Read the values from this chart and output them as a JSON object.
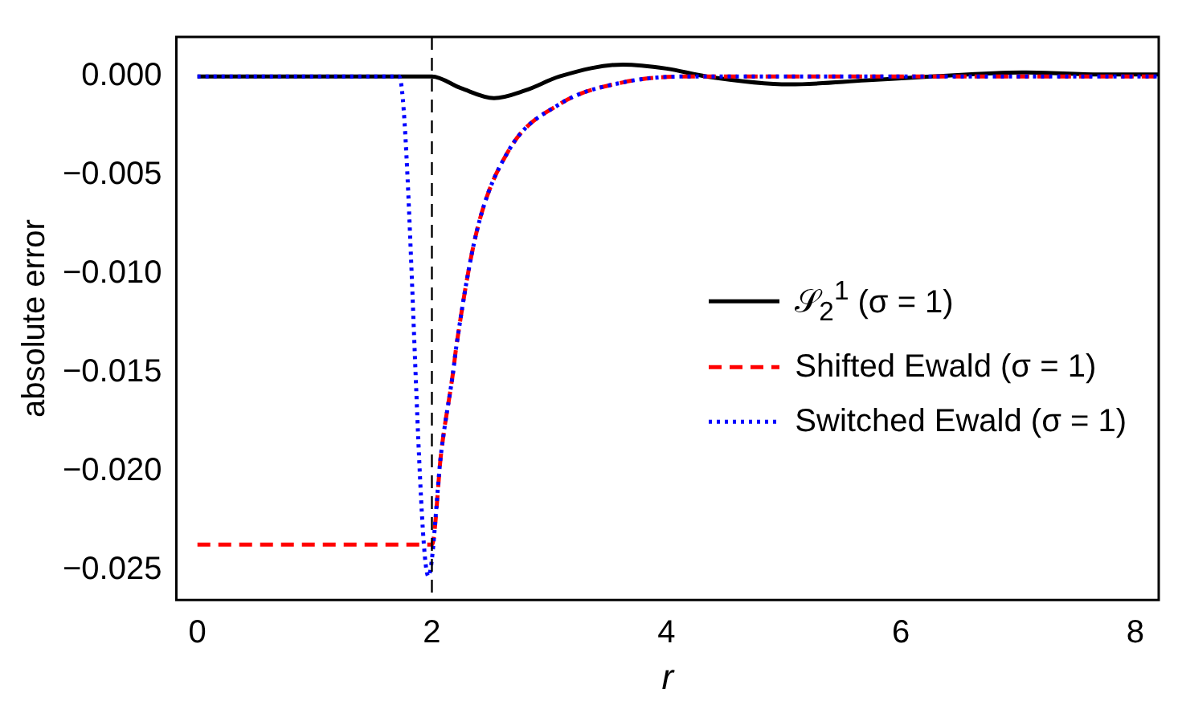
{
  "chart_data": {
    "type": "line",
    "xlabel": "r",
    "ylabel": "absolute error",
    "xlim": [
      -0.18,
      8.2
    ],
    "xticks": [
      0,
      2,
      4,
      6,
      8
    ],
    "ylim": [
      -0.0265,
      0.002
    ],
    "yticks": [
      {
        "value": 0,
        "label": "0.000"
      },
      {
        "value": -0.005,
        "label": "−0.005"
      },
      {
        "value": -0.01,
        "label": "−0.010"
      },
      {
        "value": -0.015,
        "label": "−0.015"
      },
      {
        "value": -0.02,
        "label": "−0.020"
      },
      {
        "value": -0.025,
        "label": "−0.025"
      }
    ],
    "grid": false,
    "legend": "right",
    "marker": "none",
    "ref_lines": [
      {
        "axis": "x",
        "value": 2,
        "color": "#000000",
        "line_style": "dashed"
      }
    ],
    "series": [
      {
        "name": "𝒮$_{2}$$^{1}$ (σ = 1)",
        "color": "#000000",
        "line_style": "solid",
        "x": [
          0,
          2.0,
          2.25,
          2.53,
          2.8,
          3.09,
          3.63,
          4.0,
          4.34,
          5.05,
          5.7,
          6.26,
          7.07,
          7.7,
          8.2
        ],
        "values": [
          0,
          0,
          -0.0006,
          -0.0011,
          -0.0007,
          0,
          0.0006,
          0.0004,
          0,
          -0.0004,
          -0.0002,
          0,
          0.0002,
          0.0001,
          0.0001
        ]
      },
      {
        "name": "Shifted Ewald (σ = 1)",
        "color": "#ff0000",
        "line_style": "dashed",
        "x": [
          0,
          2.0,
          2.08,
          2.18,
          2.21,
          2.38,
          2.65,
          3.09,
          3.63,
          4.2,
          8.2
        ],
        "values": [
          -0.0237,
          -0.0237,
          -0.019,
          -0.015,
          -0.0136,
          -0.0079,
          -0.0038,
          -0.0014,
          -0.0003,
          0,
          0
        ]
      },
      {
        "name": "Switched Ewald (σ = 1)",
        "color": "#0000ff",
        "line_style": "dotted",
        "x": [
          0,
          1.72,
          1.97,
          2.08,
          2.18,
          2.21,
          2.38,
          2.65,
          3.09,
          3.63,
          4.2,
          8.2
        ],
        "values": [
          0,
          0,
          -0.0253,
          -0.019,
          -0.015,
          -0.0136,
          -0.0079,
          -0.0038,
          -0.0014,
          -0.0003,
          0,
          0
        ]
      }
    ]
  }
}
